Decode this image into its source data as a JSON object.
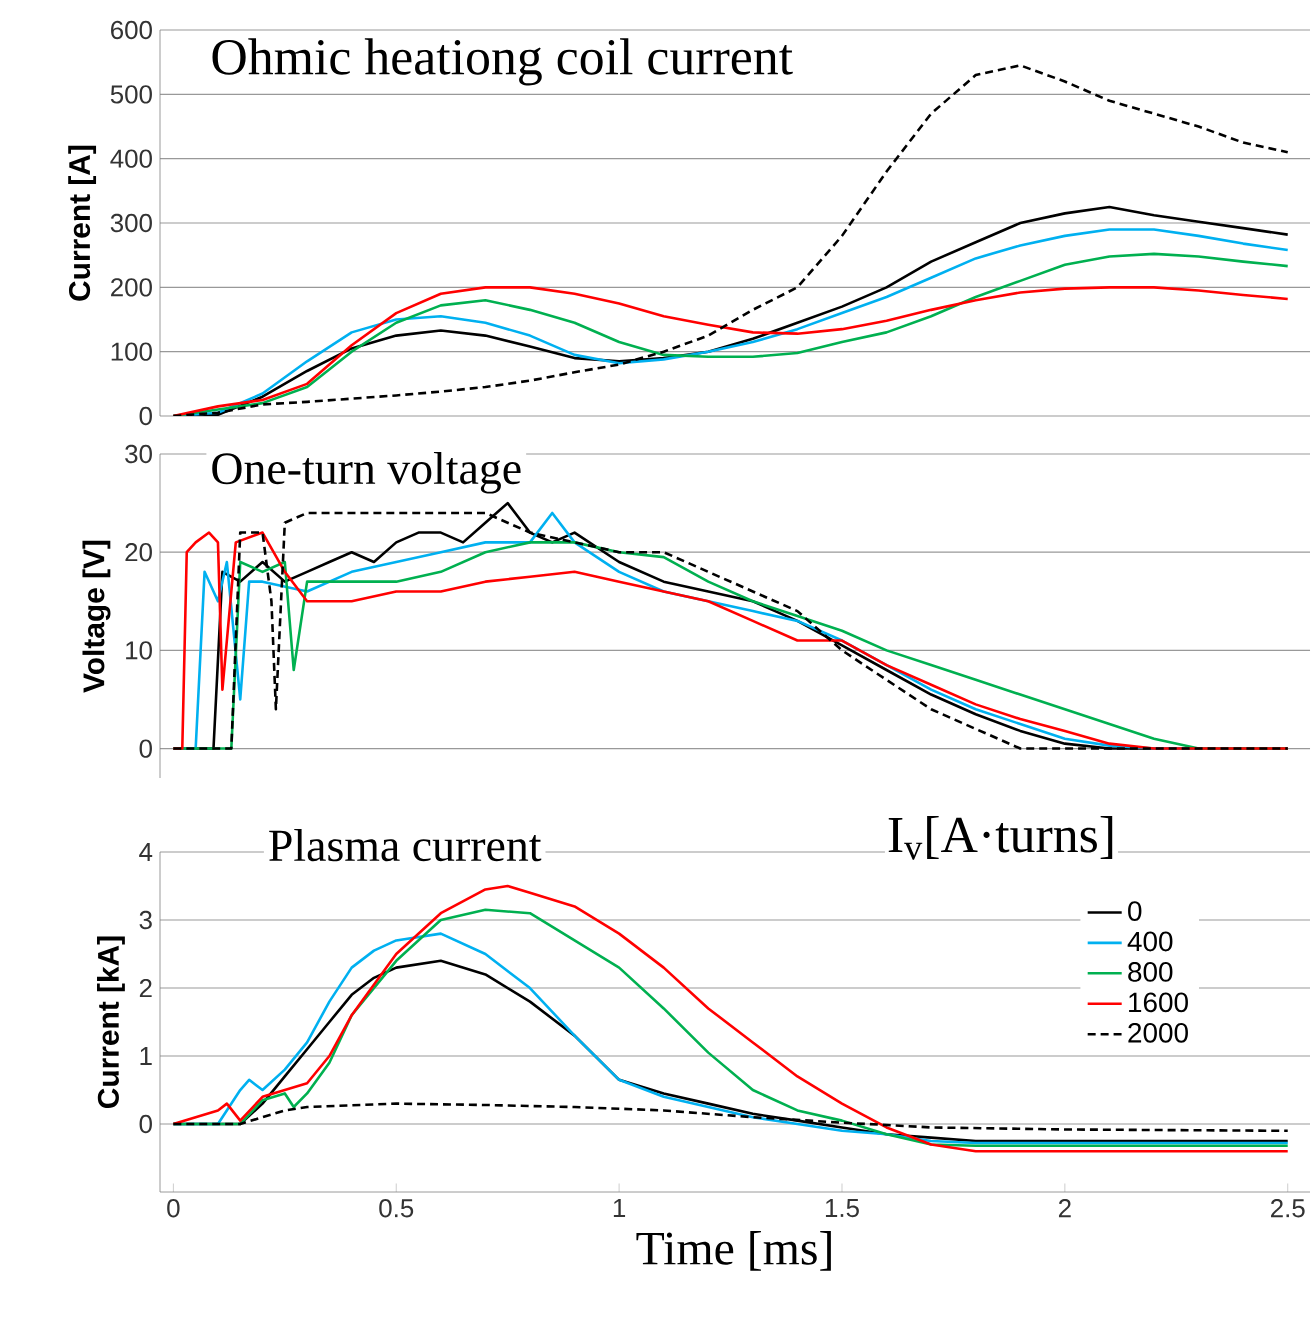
{
  "chart_data": [
    {
      "type": "line",
      "title": "Ohmic heationg coil current",
      "ylabel": "Current [A]",
      "xlim": [
        -0.03,
        2.55
      ],
      "ylim": [
        0,
        600
      ],
      "xticks": [
        0,
        0.5,
        1,
        1.5,
        2,
        2.5
      ],
      "yticks": [
        0,
        100,
        200,
        300,
        400,
        500,
        600
      ],
      "grid": "y",
      "tick_labels": "y",
      "legend": false,
      "series": [
        {
          "color": "#000000",
          "x": [
            0,
            0.1,
            0.2,
            0.3,
            0.4,
            0.5,
            0.6,
            0.7,
            0.8,
            0.9,
            1.0,
            1.1,
            1.2,
            1.3,
            1.4,
            1.5,
            1.6,
            1.7,
            1.8,
            1.9,
            2.0,
            2.1,
            2.2,
            2.3,
            2.4,
            2.5
          ],
          "values": [
            0,
            2,
            30,
            70,
            105,
            125,
            133,
            125,
            108,
            90,
            85,
            90,
            100,
            120,
            145,
            170,
            200,
            240,
            270,
            300,
            315,
            325,
            312,
            302,
            292,
            282
          ]
        },
        {
          "color": "#00b0f0",
          "x": [
            0,
            0.1,
            0.2,
            0.3,
            0.4,
            0.5,
            0.6,
            0.7,
            0.8,
            0.9,
            1.0,
            1.1,
            1.2,
            1.3,
            1.4,
            1.5,
            1.6,
            1.7,
            1.8,
            1.9,
            2.0,
            2.1,
            2.2,
            2.3,
            2.4,
            2.5
          ],
          "values": [
            0,
            5,
            35,
            85,
            130,
            150,
            155,
            145,
            125,
            95,
            82,
            88,
            100,
            115,
            135,
            160,
            185,
            215,
            245,
            265,
            280,
            290,
            290,
            280,
            268,
            258
          ]
        },
        {
          "color": "#00b050",
          "x": [
            0,
            0.1,
            0.2,
            0.3,
            0.4,
            0.5,
            0.6,
            0.7,
            0.8,
            0.9,
            1.0,
            1.1,
            1.2,
            1.3,
            1.4,
            1.5,
            1.6,
            1.7,
            1.8,
            1.9,
            2.0,
            2.1,
            2.2,
            2.3,
            2.4,
            2.5
          ],
          "values": [
            0,
            10,
            20,
            45,
            100,
            145,
            172,
            180,
            165,
            145,
            115,
            95,
            92,
            92,
            98,
            115,
            130,
            155,
            185,
            210,
            235,
            248,
            252,
            248,
            240,
            233
          ]
        },
        {
          "color": "#ff0000",
          "x": [
            0,
            0.1,
            0.2,
            0.3,
            0.4,
            0.5,
            0.6,
            0.7,
            0.8,
            0.9,
            1.0,
            1.1,
            1.2,
            1.3,
            1.4,
            1.5,
            1.6,
            1.7,
            1.8,
            1.9,
            2.0,
            2.1,
            2.2,
            2.3,
            2.4,
            2.5
          ],
          "values": [
            0,
            15,
            25,
            50,
            110,
            160,
            190,
            200,
            200,
            190,
            175,
            155,
            142,
            130,
            128,
            135,
            148,
            165,
            180,
            192,
            198,
            200,
            200,
            195,
            188,
            182
          ]
        },
        {
          "color": "#000000",
          "line_style": "dashed",
          "x": [
            0,
            0.1,
            0.2,
            0.3,
            0.4,
            0.5,
            0.6,
            0.7,
            0.8,
            0.9,
            1.0,
            1.1,
            1.2,
            1.3,
            1.4,
            1.5,
            1.6,
            1.7,
            1.8,
            1.9,
            2.0,
            2.1,
            2.2,
            2.3,
            2.4,
            2.5
          ],
          "values": [
            0,
            5,
            18,
            22,
            27,
            32,
            38,
            45,
            55,
            68,
            80,
            100,
            125,
            165,
            200,
            280,
            380,
            470,
            530,
            545,
            520,
            490,
            470,
            450,
            425,
            410
          ]
        }
      ]
    },
    {
      "type": "line",
      "title": "One-turn voltage",
      "ylabel": "Voltage [V]",
      "xlim": [
        -0.03,
        2.55
      ],
      "ylim": [
        -3,
        30
      ],
      "xticks": [
        0,
        0.5,
        1,
        1.5,
        2,
        2.5
      ],
      "yticks": [
        0,
        10,
        20,
        30
      ],
      "grid": "y",
      "tick_labels": "y",
      "legend": false,
      "series": [
        {
          "color": "#000000",
          "x": [
            0,
            0.09,
            0.11,
            0.15,
            0.2,
            0.25,
            0.3,
            0.35,
            0.4,
            0.45,
            0.5,
            0.55,
            0.6,
            0.65,
            0.7,
            0.75,
            0.8,
            0.85,
            0.9,
            1.0,
            1.1,
            1.2,
            1.3,
            1.4,
            1.5,
            1.6,
            1.7,
            1.8,
            1.9,
            2.0,
            2.1,
            2.5
          ],
          "values": [
            0,
            0,
            18,
            17,
            19,
            17,
            18,
            19,
            20,
            19,
            21,
            22,
            22,
            21,
            23,
            25,
            22,
            21,
            22,
            19,
            17,
            16,
            15,
            13,
            10.5,
            8,
            5.5,
            3.5,
            1.8,
            0.5,
            0,
            0
          ]
        },
        {
          "color": "#00b0f0",
          "x": [
            0,
            0.05,
            0.07,
            0.1,
            0.12,
            0.15,
            0.17,
            0.2,
            0.3,
            0.4,
            0.5,
            0.6,
            0.7,
            0.8,
            0.85,
            0.9,
            1.0,
            1.1,
            1.2,
            1.3,
            1.4,
            1.5,
            1.6,
            1.7,
            1.8,
            1.9,
            2.0,
            2.1,
            2.2,
            2.5
          ],
          "values": [
            0,
            0,
            18,
            15,
            19,
            5,
            17,
            17,
            16,
            18,
            19,
            20,
            21,
            21,
            24,
            21,
            18,
            16,
            15,
            14,
            13,
            11,
            8.5,
            6,
            4,
            2.5,
            1,
            0.3,
            0,
            0
          ]
        },
        {
          "color": "#00b050",
          "x": [
            0,
            0.13,
            0.15,
            0.2,
            0.25,
            0.27,
            0.3,
            0.4,
            0.5,
            0.6,
            0.7,
            0.8,
            0.9,
            1.0,
            1.1,
            1.2,
            1.3,
            1.4,
            1.5,
            1.6,
            1.7,
            1.8,
            1.9,
            2.0,
            2.1,
            2.2,
            2.3,
            2.5
          ],
          "values": [
            0,
            0,
            19,
            18,
            19,
            8,
            17,
            17,
            17,
            18,
            20,
            21,
            21,
            20,
            19.5,
            17,
            15,
            13.5,
            12,
            10,
            8.5,
            7,
            5.5,
            4,
            2.5,
            1,
            0,
            0
          ]
        },
        {
          "color": "#ff0000",
          "x": [
            0,
            0.02,
            0.03,
            0.05,
            0.08,
            0.1,
            0.11,
            0.14,
            0.2,
            0.25,
            0.3,
            0.4,
            0.5,
            0.6,
            0.7,
            0.8,
            0.9,
            1.0,
            1.1,
            1.2,
            1.3,
            1.4,
            1.5,
            1.6,
            1.7,
            1.8,
            1.9,
            2.0,
            2.1,
            2.2,
            2.5
          ],
          "values": [
            0,
            0,
            20,
            21,
            22,
            21,
            6,
            21,
            22,
            18,
            15,
            15,
            16,
            16,
            17,
            17.5,
            18,
            17,
            16,
            15,
            13,
            11,
            11,
            8.5,
            6.5,
            4.5,
            3,
            1.8,
            0.5,
            0,
            0
          ]
        },
        {
          "color": "#000000",
          "line_style": "dashed",
          "x": [
            0,
            0.13,
            0.15,
            0.2,
            0.22,
            0.23,
            0.25,
            0.3,
            0.4,
            0.5,
            0.6,
            0.7,
            0.8,
            0.9,
            1.0,
            1.1,
            1.2,
            1.3,
            1.4,
            1.5,
            1.6,
            1.7,
            1.8,
            1.9,
            2.5
          ],
          "values": [
            0,
            0,
            22,
            22,
            15,
            4,
            23,
            24,
            24,
            24,
            24,
            24,
            22,
            21,
            20,
            20,
            18,
            16,
            14,
            10,
            7,
            4,
            2,
            0,
            0
          ]
        }
      ]
    },
    {
      "type": "line",
      "title": "Plasma current",
      "xlabel": "Time [ms]",
      "ylabel": "Current [kA]",
      "legend_title": "I$_{v}$[A·turns]",
      "xlim": [
        -0.03,
        2.55
      ],
      "ylim": [
        -1,
        4
      ],
      "xticks": [
        0,
        0.5,
        1,
        1.5,
        2,
        2.5
      ],
      "yticks": [
        0,
        1,
        2,
        3,
        4
      ],
      "grid": "y",
      "legend": "right",
      "series": [
        {
          "name": "0",
          "color": "#000000",
          "x": [
            0,
            0.15,
            0.2,
            0.25,
            0.3,
            0.35,
            0.4,
            0.45,
            0.5,
            0.6,
            0.7,
            0.8,
            0.9,
            1.0,
            1.1,
            1.2,
            1.3,
            1.4,
            1.5,
            1.6,
            1.7,
            1.8,
            2.0,
            2.5
          ],
          "values": [
            0,
            0,
            0.3,
            0.7,
            1.1,
            1.5,
            1.9,
            2.15,
            2.3,
            2.4,
            2.2,
            1.8,
            1.3,
            0.65,
            0.45,
            0.3,
            0.15,
            0.05,
            -0.05,
            -0.15,
            -0.2,
            -0.25,
            -0.25,
            -0.25
          ]
        },
        {
          "name": "400",
          "color": "#00b0f0",
          "x": [
            0,
            0.1,
            0.15,
            0.17,
            0.2,
            0.25,
            0.3,
            0.35,
            0.4,
            0.45,
            0.5,
            0.6,
            0.7,
            0.8,
            0.9,
            1.0,
            1.1,
            1.2,
            1.3,
            1.4,
            1.5,
            1.6,
            1.7,
            1.8,
            2.0,
            2.5
          ],
          "values": [
            0,
            0,
            0.5,
            0.65,
            0.5,
            0.8,
            1.2,
            1.8,
            2.3,
            2.55,
            2.7,
            2.8,
            2.5,
            2.0,
            1.3,
            0.65,
            0.4,
            0.25,
            0.1,
            0,
            -0.1,
            -0.15,
            -0.25,
            -0.28,
            -0.28,
            -0.28
          ]
        },
        {
          "name": "800",
          "color": "#00b050",
          "x": [
            0,
            0.15,
            0.2,
            0.25,
            0.27,
            0.3,
            0.35,
            0.4,
            0.5,
            0.6,
            0.7,
            0.8,
            0.9,
            1.0,
            1.1,
            1.2,
            1.3,
            1.4,
            1.5,
            1.6,
            1.7,
            1.8,
            2.0,
            2.5
          ],
          "values": [
            0,
            0,
            0.35,
            0.45,
            0.25,
            0.45,
            0.9,
            1.6,
            2.4,
            3.0,
            3.15,
            3.1,
            2.7,
            2.3,
            1.7,
            1.05,
            0.5,
            0.2,
            0.05,
            -0.15,
            -0.3,
            -0.32,
            -0.32,
            -0.32
          ]
        },
        {
          "name": "1600",
          "color": "#ff0000",
          "x": [
            0,
            0.1,
            0.12,
            0.15,
            0.2,
            0.3,
            0.35,
            0.4,
            0.5,
            0.6,
            0.7,
            0.75,
            0.8,
            0.9,
            1.0,
            1.1,
            1.2,
            1.3,
            1.4,
            1.5,
            1.6,
            1.7,
            1.8,
            2.0,
            2.5
          ],
          "values": [
            0,
            0.2,
            0.3,
            0.05,
            0.4,
            0.6,
            1.0,
            1.6,
            2.5,
            3.1,
            3.45,
            3.5,
            3.4,
            3.2,
            2.8,
            2.3,
            1.7,
            1.2,
            0.7,
            0.3,
            -0.05,
            -0.3,
            -0.4,
            -0.4,
            -0.4
          ]
        },
        {
          "name": "2000",
          "color": "#000000",
          "line_style": "dashed",
          "x": [
            0,
            0.15,
            0.2,
            0.25,
            0.3,
            0.5,
            0.7,
            0.9,
            1.1,
            1.3,
            1.5,
            1.7,
            2.0,
            2.5
          ],
          "values": [
            0,
            0,
            0.1,
            0.2,
            0.25,
            0.3,
            0.28,
            0.25,
            0.2,
            0.1,
            0.02,
            -0.05,
            -0.08,
            -0.1
          ]
        }
      ]
    }
  ]
}
